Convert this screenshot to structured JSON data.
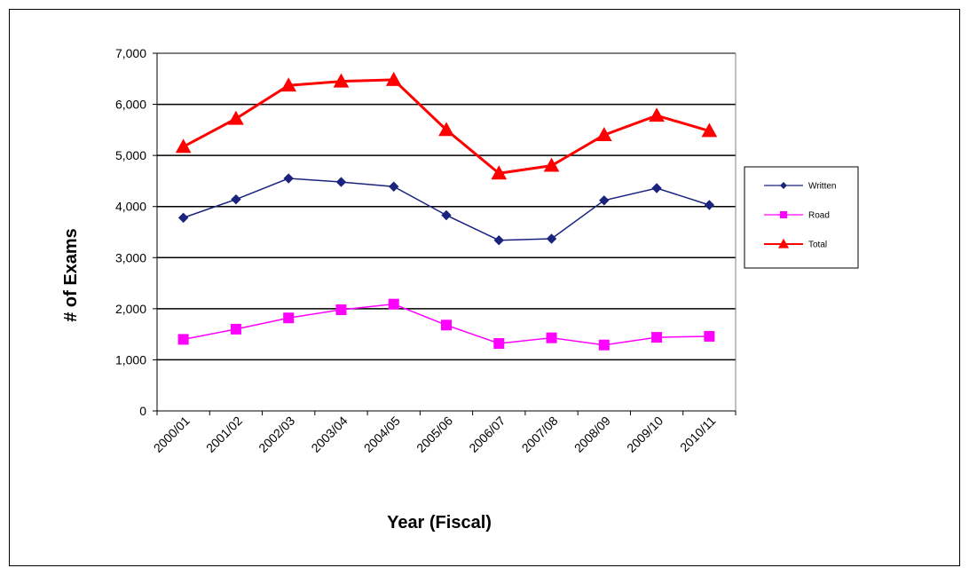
{
  "chart_data": {
    "type": "line",
    "title": "",
    "xlabel": "Year (Fiscal)",
    "ylabel": "# of Exams",
    "ylim": [
      0,
      7000
    ],
    "y_ticks": [
      0,
      1000,
      2000,
      3000,
      4000,
      5000,
      6000,
      7000
    ],
    "y_tick_labels": [
      "0",
      "1,000",
      "2,000",
      "3,000",
      "4,000",
      "5,000",
      "6,000",
      "7,000"
    ],
    "grid": "horizontal major gridlines",
    "legend_position": "right",
    "categories": [
      "2000/01",
      "2001/02",
      "2002/03",
      "2003/04",
      "2004/05",
      "2005/06",
      "2006/07",
      "2007/08",
      "2008/09",
      "2009/10",
      "2010/11"
    ],
    "series": [
      {
        "name": "Written",
        "color": "#1a237e",
        "marker": "diamond",
        "values": [
          3780,
          4140,
          4550,
          4480,
          4390,
          3830,
          3340,
          3370,
          4120,
          4360,
          4030
        ]
      },
      {
        "name": "Road",
        "color": "#ff00ff",
        "marker": "square",
        "values": [
          1400,
          1600,
          1820,
          1980,
          2090,
          1680,
          1320,
          1430,
          1290,
          1440,
          1460
        ]
      },
      {
        "name": "Total",
        "color": "#ff0000",
        "marker": "triangle",
        "values": [
          5170,
          5720,
          6370,
          6450,
          6480,
          5500,
          4650,
          4800,
          5400,
          5780,
          5480
        ]
      }
    ]
  }
}
